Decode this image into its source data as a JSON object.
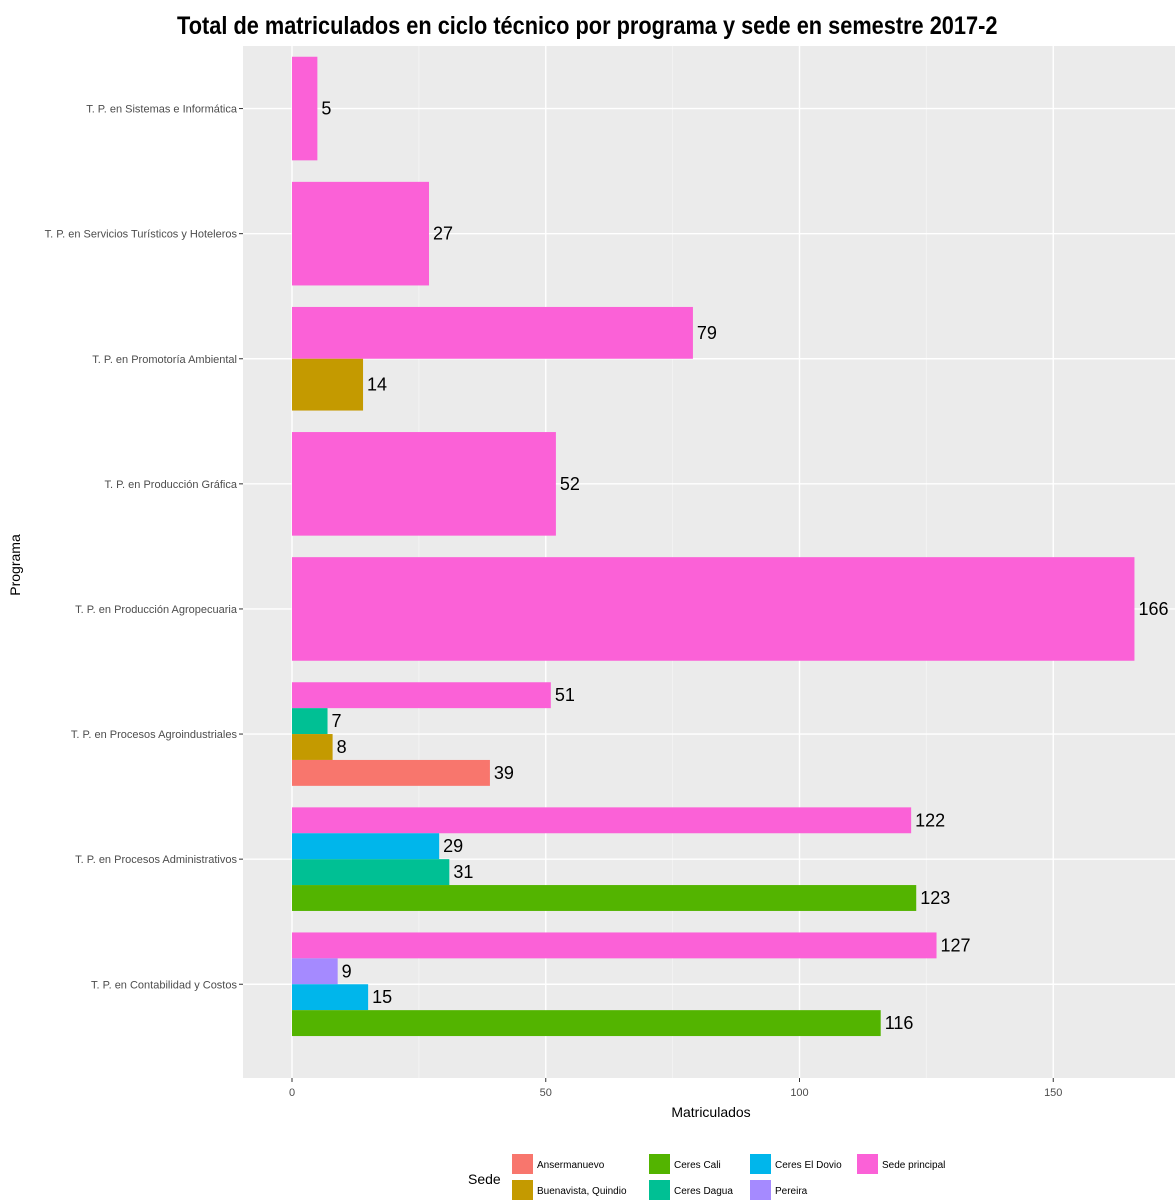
{
  "chart_data": {
    "type": "bar",
    "orientation": "horizontal",
    "title": "Total de matriculados en ciclo técnico por programa y sede en semestre 2017-2",
    "xlabel": "Matriculados",
    "ylabel": "Programa",
    "xlim": [
      0,
      170
    ],
    "x_ticks": [
      0,
      50,
      100,
      150
    ],
    "grid": true,
    "legend_title": "Sede",
    "legend_position": "bottom",
    "sedes": [
      {
        "name": "Ansermanuevo",
        "color": "#f8766d"
      },
      {
        "name": "Buenavista, Quindio",
        "color": "#c49a00"
      },
      {
        "name": "Ceres Cali",
        "color": "#53b400"
      },
      {
        "name": "Ceres Dagua",
        "color": "#00c094"
      },
      {
        "name": "Ceres El Dovio",
        "color": "#00b6eb"
      },
      {
        "name": "Pereira",
        "color": "#a58aff"
      },
      {
        "name": "Sede principal",
        "color": "#fb61d7"
      }
    ],
    "categories": [
      "T. P. en Sistemas e Informática",
      "T. P. en Servicios Turísticos y Hoteleros",
      "T. P. en Promotoría Ambiental",
      "T. P. en Producción Gráfica",
      "T. P. en Producción Agropecuaria",
      "T. P. en Procesos Agroindustriales",
      "T. P. en Procesos Administrativos",
      "T. P. en Contabilidad y Costos"
    ],
    "groups": [
      {
        "category": "T. P. en Sistemas e Informática",
        "bars": [
          {
            "sede": "Sede principal",
            "value": 5
          }
        ]
      },
      {
        "category": "T. P. en Servicios Turísticos y Hoteleros",
        "bars": [
          {
            "sede": "Sede principal",
            "value": 27
          }
        ]
      },
      {
        "category": "T. P. en Promotoría Ambiental",
        "bars": [
          {
            "sede": "Sede principal",
            "value": 79
          },
          {
            "sede": "Buenavista, Quindio",
            "value": 14
          }
        ]
      },
      {
        "category": "T. P. en Producción Gráfica",
        "bars": [
          {
            "sede": "Sede principal",
            "value": 52
          }
        ]
      },
      {
        "category": "T. P. en Producción Agropecuaria",
        "bars": [
          {
            "sede": "Sede principal",
            "value": 166
          }
        ]
      },
      {
        "category": "T. P. en Procesos Agroindustriales",
        "bars": [
          {
            "sede": "Sede principal",
            "value": 51
          },
          {
            "sede": "Ceres Dagua",
            "value": 7
          },
          {
            "sede": "Buenavista, Quindio",
            "value": 8
          },
          {
            "sede": "Ansermanuevo",
            "value": 39
          }
        ]
      },
      {
        "category": "T. P. en Procesos Administrativos",
        "bars": [
          {
            "sede": "Sede principal",
            "value": 122
          },
          {
            "sede": "Ceres El Dovio",
            "value": 29
          },
          {
            "sede": "Ceres Dagua",
            "value": 31
          },
          {
            "sede": "Ceres Cali",
            "value": 123
          }
        ]
      },
      {
        "category": "T. P. en Contabilidad y Costos",
        "bars": [
          {
            "sede": "Sede principal",
            "value": 127
          },
          {
            "sede": "Pereira",
            "value": 9
          },
          {
            "sede": "Ceres El Dovio",
            "value": 15
          },
          {
            "sede": "Ceres Cali",
            "value": 116
          }
        ]
      }
    ]
  }
}
